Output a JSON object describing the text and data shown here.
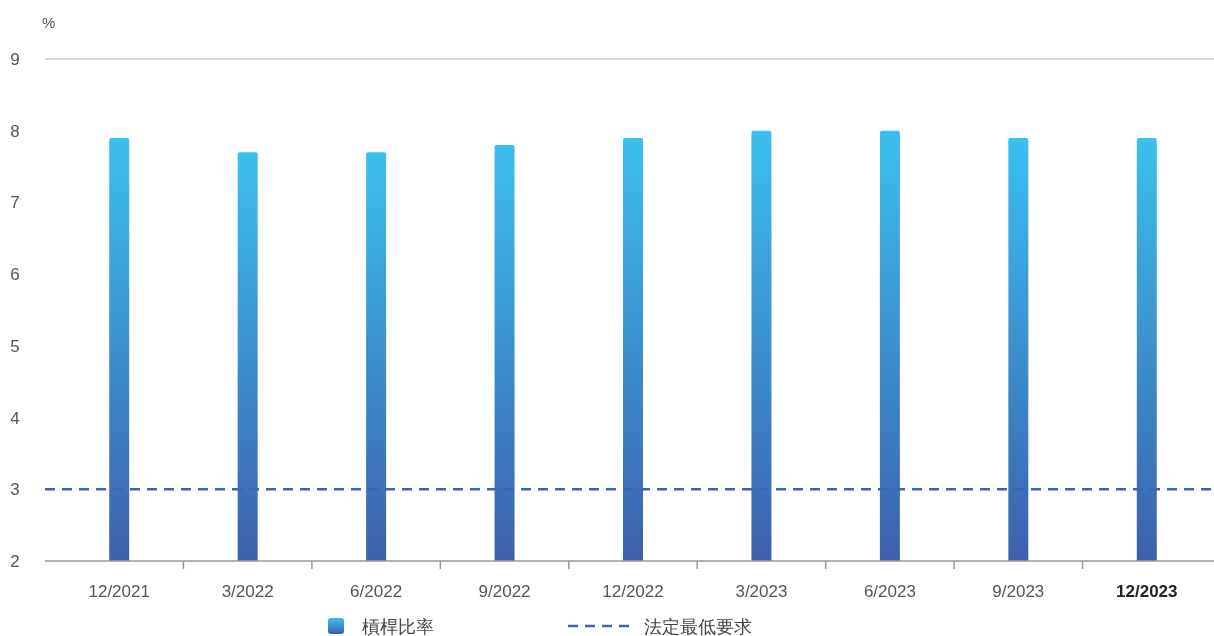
{
  "chart_data": {
    "type": "bar",
    "ylabel": "%",
    "categories": [
      "12/2021",
      "3/2022",
      "6/2022",
      "9/2022",
      "12/2022",
      "3/2023",
      "6/2023",
      "9/2023",
      "12/2023"
    ],
    "series": [
      {
        "name": "槓桿比率",
        "color": "#3bc0ee",
        "values": [
          7.9,
          7.7,
          7.7,
          7.8,
          7.9,
          8.0,
          8.0,
          7.9,
          7.9
        ]
      }
    ],
    "ylim": [
      2,
      9
    ],
    "yticks": [
      2,
      3,
      4,
      5,
      6,
      7,
      8,
      9
    ],
    "ref_lines": [
      {
        "axis": "y",
        "value": 3,
        "label": "法定最低要求",
        "color": "#3d63b5",
        "line_style": "dashed"
      }
    ],
    "grid": false,
    "legend": "bottom"
  }
}
